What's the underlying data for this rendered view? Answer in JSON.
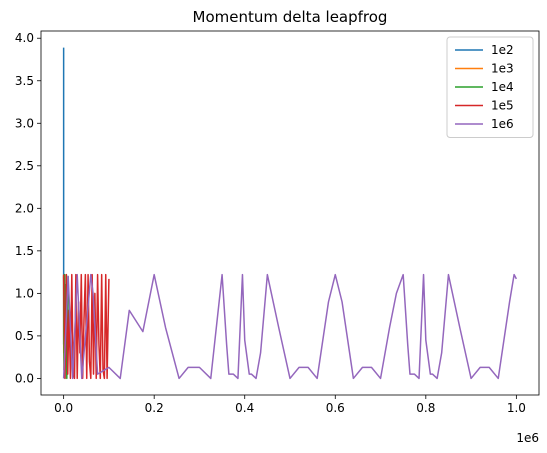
{
  "chart_data": {
    "type": "line",
    "title": "Momentum delta leapfrog",
    "xlabel": "",
    "ylabel": "",
    "x_offset_label": "1e6",
    "xlim": [
      -0.05,
      1.05
    ],
    "ylim": [
      -0.195,
      4.085
    ],
    "xticks": [
      0.0,
      0.2,
      0.4,
      0.6,
      0.8,
      1.0
    ],
    "xtick_labels": [
      "0.0",
      "0.2",
      "0.4",
      "0.6",
      "0.8",
      "1.0"
    ],
    "yticks": [
      0.0,
      0.5,
      1.0,
      1.5,
      2.0,
      2.5,
      3.0,
      3.5,
      4.0
    ],
    "ytick_labels": [
      "0.0",
      "0.5",
      "1.0",
      "1.5",
      "2.0",
      "2.5",
      "3.0",
      "3.5",
      "4.0"
    ],
    "legend_position": "top-right",
    "series": [
      {
        "name": "1e2",
        "color": "#1f77b4",
        "x": [
          0.0,
          2e-05,
          5e-05,
          0.0001
        ],
        "y": [
          3.89,
          1.22,
          0.4,
          1.2
        ]
      },
      {
        "name": "1e3",
        "color": "#ff7f0e",
        "x": [
          0.0,
          0.0002,
          0.0004,
          0.0006,
          0.0008,
          0.001
        ],
        "y": [
          1.22,
          0.3,
          1.0,
          0.1,
          0.8,
          1.2
        ]
      },
      {
        "name": "1e4",
        "color": "#2ca02c",
        "x": [
          0.0,
          0.001,
          0.002,
          0.003,
          0.004,
          0.005,
          0.006,
          0.007,
          0.008,
          0.009,
          0.01
        ],
        "y": [
          1.2,
          0.1,
          1.22,
          0.0,
          1.1,
          0.2,
          1.22,
          0.0,
          0.9,
          0.3,
          1.2
        ]
      },
      {
        "name": "1e5",
        "color": "#d62728",
        "x": [
          0.0,
          0.003,
          0.006,
          0.009,
          0.012,
          0.015,
          0.018,
          0.021,
          0.024,
          0.027,
          0.03,
          0.033,
          0.036,
          0.039,
          0.042,
          0.045,
          0.048,
          0.051,
          0.054,
          0.057,
          0.06,
          0.063,
          0.066,
          0.069,
          0.072,
          0.075,
          0.078,
          0.081,
          0.084,
          0.087,
          0.09,
          0.093,
          0.096,
          0.1
        ],
        "y": [
          1.22,
          0.0,
          1.22,
          0.05,
          0.8,
          0.0,
          1.22,
          0.1,
          0.0,
          1.22,
          0.0,
          0.9,
          0.3,
          1.22,
          0.0,
          0.7,
          1.22,
          0.0,
          1.22,
          0.2,
          0.0,
          1.22,
          0.05,
          1.0,
          0.0,
          1.22,
          0.4,
          0.0,
          1.22,
          0.1,
          0.0,
          1.22,
          0.0,
          1.17
        ]
      },
      {
        "name": "1e6",
        "color": "#9467bd",
        "x": [
          0.0,
          0.01,
          0.02,
          0.03,
          0.04,
          0.05,
          0.06,
          0.065,
          0.075,
          0.1,
          0.125,
          0.145,
          0.175,
          0.2,
          0.225,
          0.255,
          0.275,
          0.3,
          0.325,
          0.35,
          0.36,
          0.365,
          0.375,
          0.385,
          0.395,
          0.4,
          0.41,
          0.415,
          0.425,
          0.435,
          0.45,
          0.475,
          0.5,
          0.52,
          0.54,
          0.56,
          0.585,
          0.6,
          0.615,
          0.64,
          0.66,
          0.68,
          0.7,
          0.72,
          0.735,
          0.75,
          0.76,
          0.765,
          0.775,
          0.785,
          0.795,
          0.8,
          0.81,
          0.815,
          0.825,
          0.835,
          0.85,
          0.875,
          0.9,
          0.92,
          0.94,
          0.96,
          0.985,
          0.995,
          1.0
        ],
        "y": [
          0.0,
          1.2,
          0.0,
          1.22,
          0.0,
          0.6,
          1.22,
          1.0,
          0.05,
          0.13,
          0.0,
          0.8,
          0.55,
          1.22,
          0.6,
          0.0,
          0.13,
          0.13,
          0.0,
          1.22,
          0.4,
          0.05,
          0.05,
          0.0,
          1.22,
          0.45,
          0.05,
          0.05,
          0.0,
          0.3,
          1.22,
          0.6,
          0.0,
          0.13,
          0.13,
          0.0,
          0.9,
          1.22,
          0.9,
          0.0,
          0.13,
          0.13,
          0.0,
          0.6,
          1.0,
          1.22,
          0.4,
          0.05,
          0.05,
          0.0,
          1.22,
          0.45,
          0.05,
          0.05,
          0.0,
          0.3,
          1.22,
          0.6,
          0.0,
          0.13,
          0.13,
          0.0,
          0.9,
          1.22,
          1.17
        ]
      }
    ]
  }
}
